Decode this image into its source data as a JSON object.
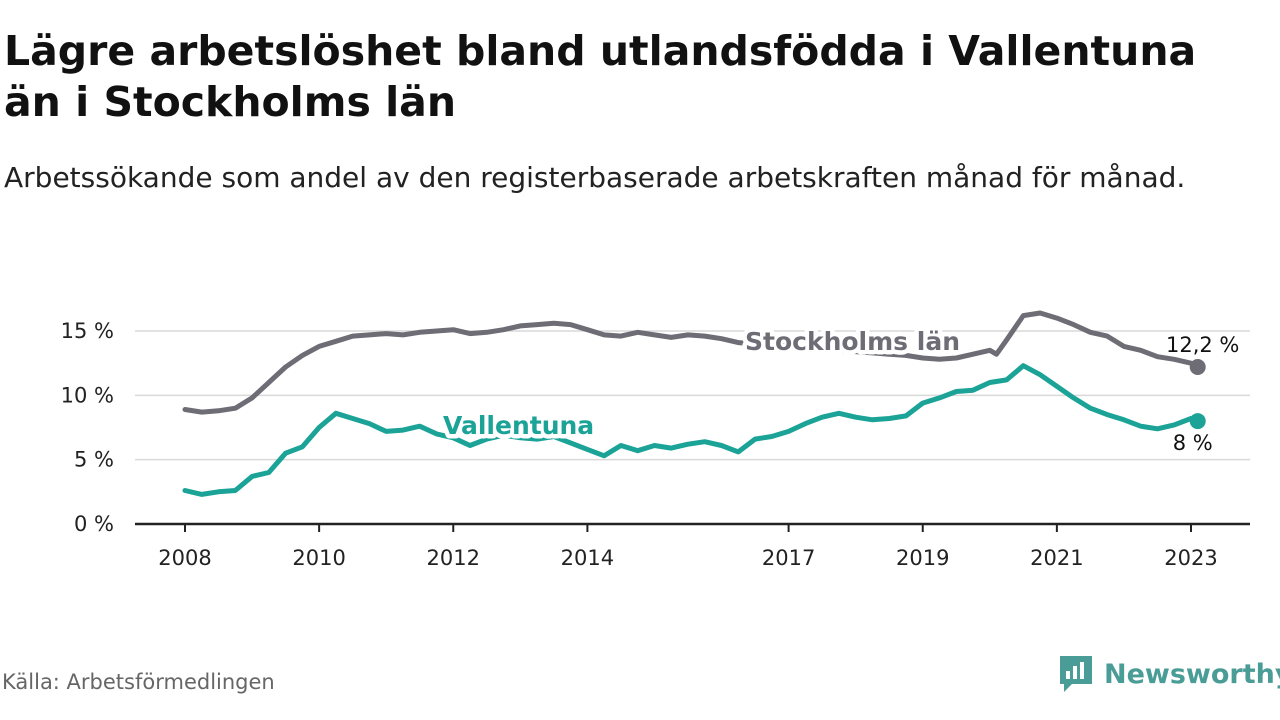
{
  "header": {
    "title": "Lägre arbetslöshet bland utlandsfödda i Vallentuna än i Stockholms län",
    "subtitle": "Arbetssökande som andel av den registerbaserade arbetskraften månad för månad."
  },
  "footer": {
    "source": "Källa: Arbetsförmedlingen",
    "brand": "Newsworthy"
  },
  "colors": {
    "stockholm": "#6e6c75",
    "vallentuna": "#1aa396",
    "grid": "#d9d9d9",
    "axis": "#222222",
    "brand": "#4a9c96"
  },
  "chart_data": {
    "type": "line",
    "title": "Lägre arbetslöshet bland utlandsfödda i Vallentuna än i Stockholms län",
    "xlabel": "",
    "ylabel": "",
    "xlim": [
      2008,
      2023.6
    ],
    "ylim": [
      0,
      16.5
    ],
    "y_ticks": [
      0,
      5,
      10,
      15
    ],
    "y_tick_labels": [
      "0 %",
      "5 %",
      "10 %",
      "15 %"
    ],
    "x_ticks": [
      2008,
      2010,
      2012,
      2014,
      2017,
      2019,
      2021,
      2023
    ],
    "x_tick_labels": [
      "2008",
      "2010",
      "2012",
      "2014",
      "2017",
      "2019",
      "2021",
      "2023"
    ],
    "grid": true,
    "series": [
      {
        "name": "Stockholms län",
        "key": "stockholm",
        "label": "Stockholms län",
        "end_label": "12,2 %",
        "points": [
          [
            2008.0,
            8.9
          ],
          [
            2008.25,
            8.7
          ],
          [
            2008.5,
            8.8
          ],
          [
            2008.75,
            9.0
          ],
          [
            2009.0,
            9.8
          ],
          [
            2009.25,
            11.0
          ],
          [
            2009.5,
            12.2
          ],
          [
            2009.75,
            13.1
          ],
          [
            2010.0,
            13.8
          ],
          [
            2010.25,
            14.2
          ],
          [
            2010.5,
            14.6
          ],
          [
            2010.75,
            14.7
          ],
          [
            2011.0,
            14.8
          ],
          [
            2011.25,
            14.7
          ],
          [
            2011.5,
            14.9
          ],
          [
            2011.75,
            15.0
          ],
          [
            2012.0,
            15.1
          ],
          [
            2012.25,
            14.8
          ],
          [
            2012.5,
            14.9
          ],
          [
            2012.75,
            15.1
          ],
          [
            2013.0,
            15.4
          ],
          [
            2013.25,
            15.5
          ],
          [
            2013.5,
            15.6
          ],
          [
            2013.75,
            15.5
          ],
          [
            2014.0,
            15.1
          ],
          [
            2014.25,
            14.7
          ],
          [
            2014.5,
            14.6
          ],
          [
            2014.75,
            14.9
          ],
          [
            2015.0,
            14.7
          ],
          [
            2015.25,
            14.5
          ],
          [
            2015.5,
            14.7
          ],
          [
            2015.75,
            14.6
          ],
          [
            2016.0,
            14.4
          ],
          [
            2016.25,
            14.1
          ],
          [
            2016.5,
            14.0
          ],
          [
            2016.75,
            13.9
          ],
          [
            2017.0,
            13.8
          ],
          [
            2017.25,
            13.7
          ],
          [
            2017.5,
            13.6
          ],
          [
            2017.75,
            13.5
          ],
          [
            2018.0,
            13.4
          ],
          [
            2018.25,
            13.3
          ],
          [
            2018.5,
            13.2
          ],
          [
            2018.75,
            13.1
          ],
          [
            2019.0,
            12.9
          ],
          [
            2019.25,
            12.8
          ],
          [
            2019.5,
            12.9
          ],
          [
            2019.75,
            13.2
          ],
          [
            2020.0,
            13.5
          ],
          [
            2020.1,
            13.2
          ],
          [
            2020.25,
            14.3
          ],
          [
            2020.5,
            16.2
          ],
          [
            2020.75,
            16.4
          ],
          [
            2021.0,
            16.0
          ],
          [
            2021.25,
            15.5
          ],
          [
            2021.5,
            14.9
          ],
          [
            2021.75,
            14.6
          ],
          [
            2022.0,
            13.8
          ],
          [
            2022.25,
            13.5
          ],
          [
            2022.5,
            13.0
          ],
          [
            2022.75,
            12.8
          ],
          [
            2023.0,
            12.5
          ],
          [
            2023.1,
            12.2
          ]
        ]
      },
      {
        "name": "Vallentuna",
        "key": "vallentuna",
        "label": "Vallentuna",
        "end_label": "8 %",
        "points": [
          [
            2008.0,
            2.6
          ],
          [
            2008.25,
            2.3
          ],
          [
            2008.5,
            2.5
          ],
          [
            2008.75,
            2.6
          ],
          [
            2009.0,
            3.7
          ],
          [
            2009.25,
            4.0
          ],
          [
            2009.5,
            5.5
          ],
          [
            2009.75,
            6.0
          ],
          [
            2010.0,
            7.5
          ],
          [
            2010.25,
            8.6
          ],
          [
            2010.5,
            8.2
          ],
          [
            2010.75,
            7.8
          ],
          [
            2011.0,
            7.2
          ],
          [
            2011.25,
            7.3
          ],
          [
            2011.5,
            7.6
          ],
          [
            2011.75,
            7.0
          ],
          [
            2012.0,
            6.7
          ],
          [
            2012.25,
            6.1
          ],
          [
            2012.5,
            6.6
          ],
          [
            2012.75,
            6.9
          ],
          [
            2013.0,
            6.7
          ],
          [
            2013.25,
            6.6
          ],
          [
            2013.5,
            6.8
          ],
          [
            2013.75,
            6.3
          ],
          [
            2014.0,
            5.8
          ],
          [
            2014.25,
            5.3
          ],
          [
            2014.5,
            6.1
          ],
          [
            2014.75,
            5.7
          ],
          [
            2015.0,
            6.1
          ],
          [
            2015.25,
            5.9
          ],
          [
            2015.5,
            6.2
          ],
          [
            2015.75,
            6.4
          ],
          [
            2016.0,
            6.1
          ],
          [
            2016.25,
            5.6
          ],
          [
            2016.5,
            6.6
          ],
          [
            2016.75,
            6.8
          ],
          [
            2017.0,
            7.2
          ],
          [
            2017.25,
            7.8
          ],
          [
            2017.5,
            8.3
          ],
          [
            2017.75,
            8.6
          ],
          [
            2018.0,
            8.3
          ],
          [
            2018.25,
            8.1
          ],
          [
            2018.5,
            8.2
          ],
          [
            2018.75,
            8.4
          ],
          [
            2019.0,
            9.4
          ],
          [
            2019.25,
            9.8
          ],
          [
            2019.5,
            10.3
          ],
          [
            2019.75,
            10.4
          ],
          [
            2020.0,
            11.0
          ],
          [
            2020.25,
            11.2
          ],
          [
            2020.5,
            12.3
          ],
          [
            2020.75,
            11.6
          ],
          [
            2021.0,
            10.7
          ],
          [
            2021.25,
            9.8
          ],
          [
            2021.5,
            9.0
          ],
          [
            2021.75,
            8.5
          ],
          [
            2022.0,
            8.1
          ],
          [
            2022.25,
            7.6
          ],
          [
            2022.5,
            7.4
          ],
          [
            2022.75,
            7.7
          ],
          [
            2023.0,
            8.2
          ],
          [
            2023.1,
            8.0
          ]
        ]
      }
    ]
  }
}
